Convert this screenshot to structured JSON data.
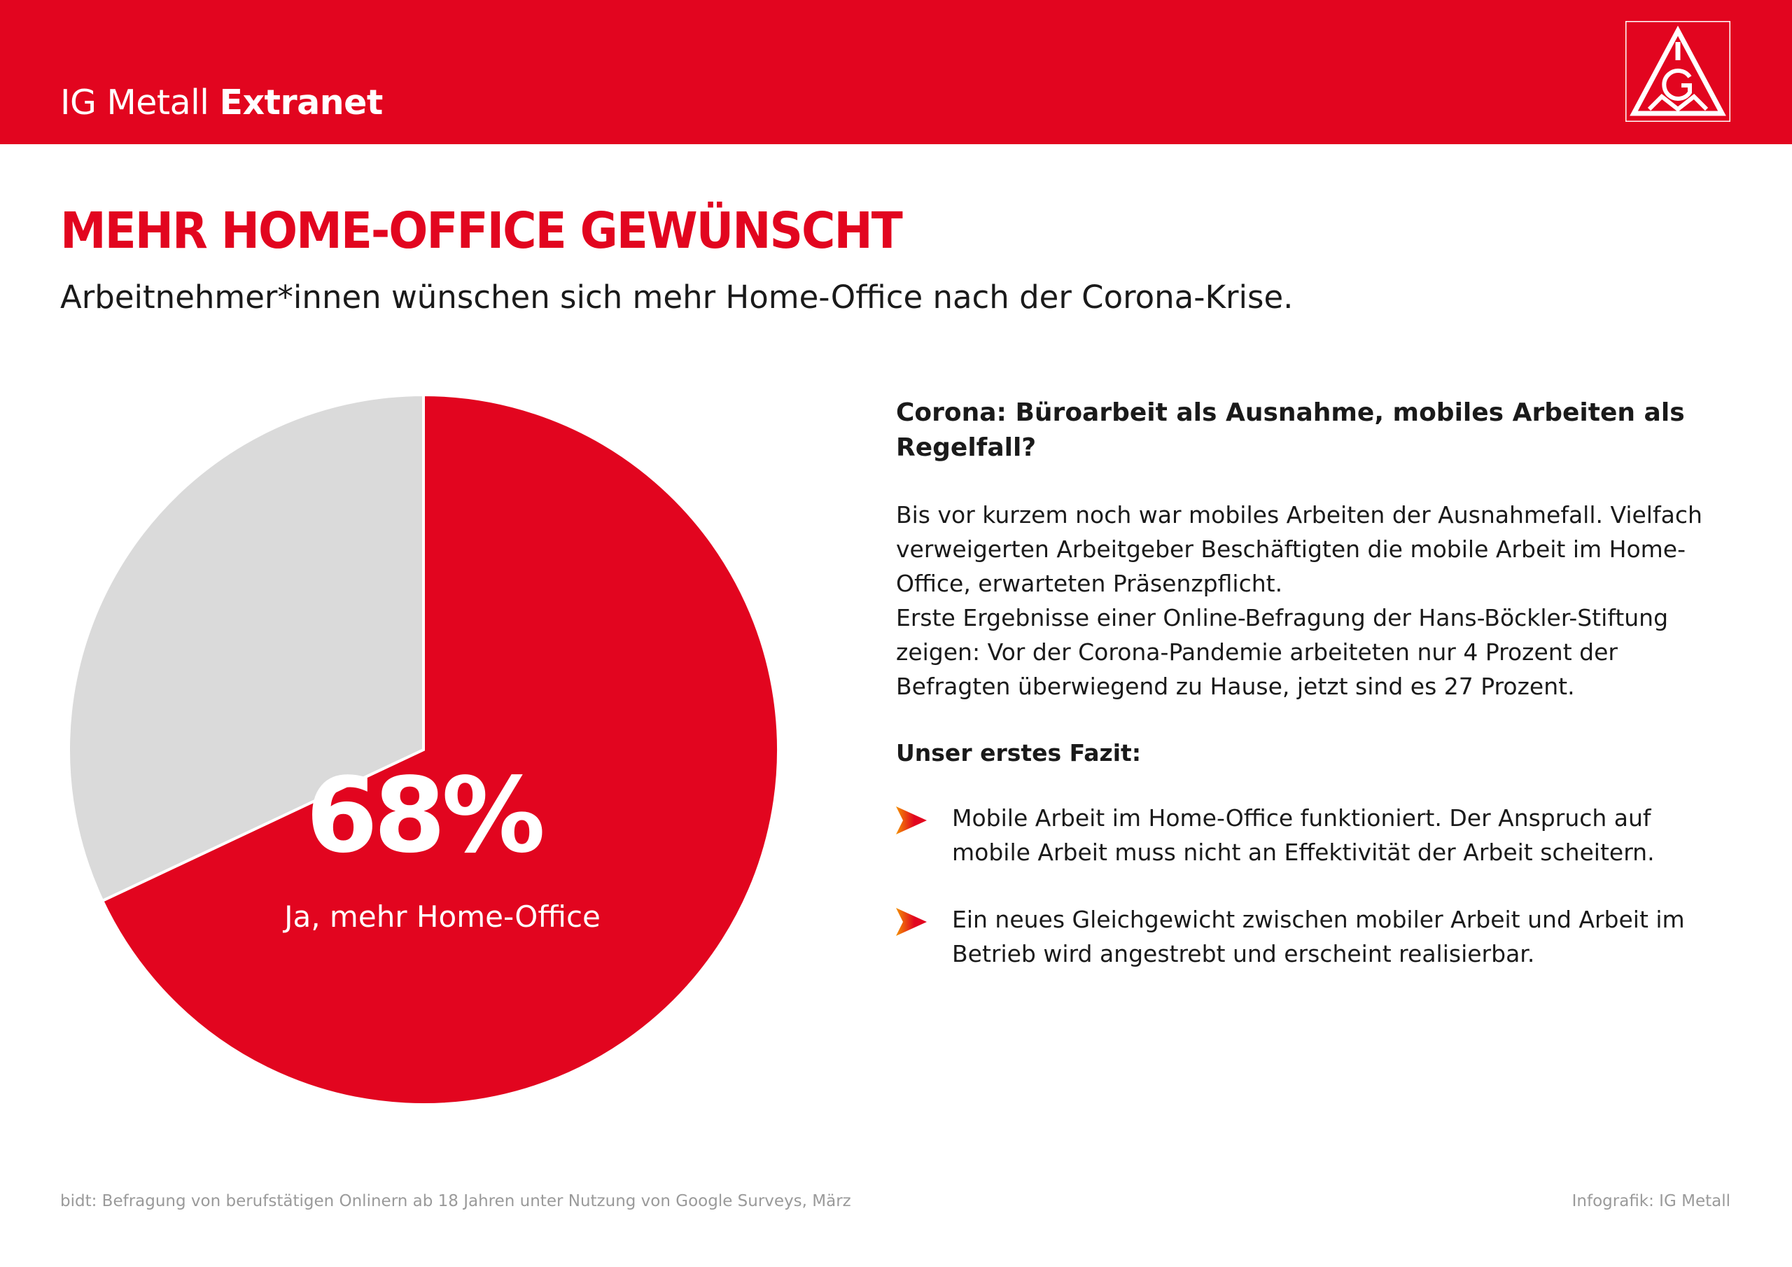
{
  "header": {
    "brand_regular": "IG Metall",
    "brand_bold": "Extranet",
    "logo_letters": "IGM",
    "color": "#e2051f"
  },
  "headline": "MEHR HOME-OFFICE GEWÜNSCHT",
  "subtitle": "Arbeitnehmer*innen wünschen sich mehr Home-Office nach der Corona-Krise.",
  "chart_data": {
    "type": "pie",
    "title": "",
    "slices": [
      {
        "label": "Ja, mehr Home-Office",
        "value": 68,
        "display": "68%",
        "color": "#e2051f"
      },
      {
        "label": "",
        "value": 32,
        "color": "#dadada"
      }
    ],
    "start_angle": "12 o'clock",
    "direction": "clockwise"
  },
  "article": {
    "heading": "Corona: Büroarbeit als Ausnahme, mobiles Arbeiten als Regelfall?",
    "paragraph1": "Bis vor kurzem noch war mobiles Arbeiten der Ausnahmefall. Vielfach verweigerten Arbeitgeber Beschäftigten die mobile Arbeit im Home-Office, erwarteten Präsenzpflicht.",
    "paragraph2": "Erste Ergebnisse einer Online-Befragung der Hans-Böckler-Stiftung zeigen: Vor der Corona-Pandemie arbeiteten nur 4 Prozent der Befragten überwiegend zu Hause, jetzt sind es 27 Prozent.",
    "fazit_label": "Unser erstes Fazit:",
    "bullets": [
      "Mobile Arbeit im Home-Office funktioniert. Der Anspruch auf mobile Arbeit muss nicht an Effektivität der Arbeit scheitern.",
      "Ein neues Gleichgewicht zwischen mobiler Arbeit und Arbeit im Betrieb wird angestrebt und erscheint realisierbar."
    ]
  },
  "footer": {
    "source": "bidt: Befragung von berufstätigen Onlinern ab 18 Jahren unter Nutzung von Google Surveys, März",
    "credit": "Infografik: IG Metall"
  }
}
